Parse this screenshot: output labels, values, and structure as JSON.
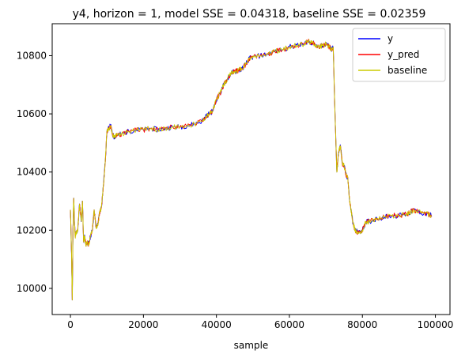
{
  "chart_data": {
    "type": "line",
    "title": "y4, horizon = 1, model SSE = 0.04318, baseline SSE = 0.02359",
    "xlabel": "sample",
    "ylabel": "",
    "xlim": [
      -5000,
      104000
    ],
    "ylim": [
      9910,
      10910
    ],
    "xticks": [
      0,
      20000,
      40000,
      60000,
      80000,
      100000
    ],
    "yticks": [
      10000,
      10200,
      10400,
      10600,
      10800
    ],
    "grid": false,
    "legend": "top-right",
    "series": [
      {
        "name": "y",
        "color": "#0000ff",
        "x": [
          0,
          300,
          500,
          700,
          900,
          1100,
          1300,
          1500,
          2000,
          2500,
          3000,
          3300,
          3600,
          3900,
          4200,
          4500,
          5000,
          5500,
          6000,
          6500,
          7000,
          7500,
          8000,
          8500,
          9000,
          9500,
          10000,
          10500,
          11000,
          11500,
          12000,
          13000,
          14000,
          16000,
          18000,
          20000,
          22000,
          24000,
          26000,
          28000,
          30000,
          32000,
          34000,
          36000,
          37000,
          38000,
          39000,
          40000,
          41000,
          42000,
          43000,
          44000,
          45000,
          46000,
          47000,
          48000,
          49000,
          50000,
          52000,
          54000,
          56000,
          58000,
          60000,
          62000,
          64000,
          65000,
          66000,
          67000,
          68000,
          69000,
          70000,
          71000,
          71500,
          72000,
          72500,
          73000,
          73500,
          74000,
          74500,
          75000,
          75500,
          76000,
          76500,
          77000,
          77500,
          78000,
          79000,
          80000,
          81000,
          82000,
          84000,
          86000,
          88000,
          90000,
          92000,
          93000,
          94000,
          96000,
          98000,
          99000
        ],
        "values": [
          10270,
          10120,
          9960,
          10200,
          10310,
          10230,
          10180,
          10190,
          10200,
          10290,
          10230,
          10300,
          10160,
          10180,
          10150,
          10160,
          10150,
          10180,
          10200,
          10270,
          10210,
          10220,
          10260,
          10280,
          10350,
          10430,
          10540,
          10550,
          10560,
          10530,
          10520,
          10530,
          10530,
          10540,
          10545,
          10545,
          10550,
          10545,
          10550,
          10555,
          10555,
          10560,
          10565,
          10575,
          10590,
          10600,
          10610,
          10650,
          10670,
          10700,
          10720,
          10740,
          10745,
          10750,
          10755,
          10770,
          10790,
          10795,
          10800,
          10805,
          10815,
          10820,
          10830,
          10835,
          10840,
          10850,
          10845,
          10840,
          10830,
          10835,
          10840,
          10830,
          10820,
          10830,
          10600,
          10400,
          10470,
          10490,
          10430,
          10420,
          10390,
          10380,
          10300,
          10260,
          10220,
          10200,
          10190,
          10200,
          10230,
          10230,
          10240,
          10245,
          10250,
          10250,
          10255,
          10260,
          10270,
          10260,
          10255,
          10250
        ]
      },
      {
        "name": "y_pred",
        "color": "#ff0000"
      },
      {
        "name": "baseline",
        "color": "#cccc00"
      }
    ]
  }
}
